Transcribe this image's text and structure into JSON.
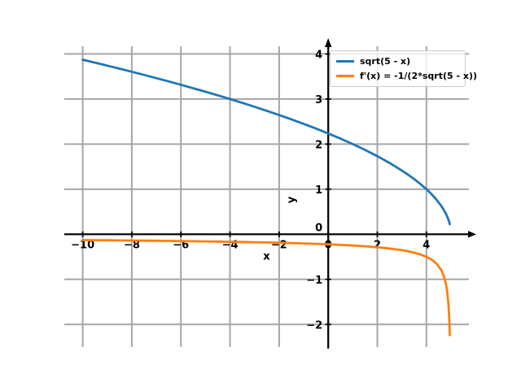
{
  "figure": {
    "background": "#ffffff"
  },
  "chart_data": {
    "type": "line",
    "title": "",
    "xlabel": "x",
    "ylabel": "y",
    "xlim": [
      -10.75,
      5.73
    ],
    "ylim": [
      -2.5,
      4.17
    ],
    "grid": true,
    "grid_color": "#a6a6a6",
    "axis_color": "#000000",
    "tick_label_color": "#000000",
    "legend_position": "upper right",
    "x_ticks": [
      {
        "value": -10,
        "label": "−10"
      },
      {
        "value": -8,
        "label": "−8"
      },
      {
        "value": -6,
        "label": "−6"
      },
      {
        "value": -4,
        "label": "−4"
      },
      {
        "value": -2,
        "label": "−2"
      },
      {
        "value": 0,
        "label": "0"
      },
      {
        "value": 2,
        "label": "2"
      },
      {
        "value": 4,
        "label": "4"
      }
    ],
    "y_ticks": [
      {
        "value": 4,
        "label": "4"
      },
      {
        "value": 3,
        "label": "3"
      },
      {
        "value": 2,
        "label": "2"
      },
      {
        "value": 1,
        "label": "1"
      },
      {
        "value": 0,
        "label": "0"
      },
      {
        "value": -1,
        "label": "−1"
      },
      {
        "value": -2,
        "label": "−2"
      }
    ],
    "x": [
      -10,
      -9.5,
      -9,
      -8.5,
      -8,
      -7.5,
      -7,
      -6.5,
      -6,
      -5.5,
      -5,
      -4.5,
      -4,
      -3.5,
      -3,
      -2.5,
      -2,
      -1.5,
      -1,
      -0.5,
      0,
      0.5,
      1,
      1.5,
      2,
      2.5,
      3,
      3.25,
      3.5,
      3.75,
      4,
      4.2,
      4.4,
      4.6,
      4.7,
      4.8,
      4.85,
      4.9,
      4.93,
      4.95
    ],
    "series": [
      {
        "name": "sqrt(5 - x)",
        "color": "#1f77b4",
        "values": [
          3.873,
          3.8079,
          3.7417,
          3.6742,
          3.6056,
          3.5355,
          3.4641,
          3.3912,
          3.3166,
          3.2404,
          3.1623,
          3.0822,
          3.0,
          2.9155,
          2.8284,
          2.7386,
          2.6458,
          2.5495,
          2.4495,
          2.3452,
          2.2361,
          2.1213,
          2.0,
          1.8708,
          1.7321,
          1.5811,
          1.4142,
          1.3229,
          1.2247,
          1.118,
          1.0,
          0.8944,
          0.7746,
          0.6325,
          0.5477,
          0.4472,
          0.3873,
          0.3162,
          0.2646,
          0.2236
        ]
      },
      {
        "name": "f'(x) = -1/(2*sqrt(5 - x))",
        "color": "#ff7f0e",
        "values": [
          -0.1291,
          -0.1313,
          -0.1336,
          -0.1361,
          -0.1387,
          -0.1414,
          -0.1443,
          -0.1474,
          -0.1508,
          -0.1543,
          -0.1581,
          -0.1622,
          -0.1667,
          -0.1715,
          -0.1768,
          -0.1826,
          -0.189,
          -0.1961,
          -0.2041,
          -0.2132,
          -0.2236,
          -0.2357,
          -0.25,
          -0.2673,
          -0.2887,
          -0.3162,
          -0.3536,
          -0.378,
          -0.4082,
          -0.4472,
          -0.5,
          -0.559,
          -0.6455,
          -0.7906,
          -0.9129,
          -1.118,
          -1.291,
          -1.5811,
          -1.8898,
          -2.2361
        ]
      }
    ]
  }
}
